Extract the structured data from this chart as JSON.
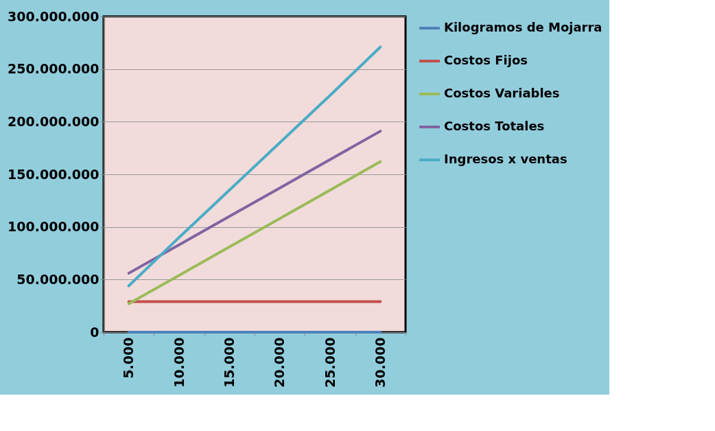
{
  "chart_data": {
    "type": "line",
    "categories": [
      "5.000",
      "10.000",
      "15.000",
      "20.000",
      "25.000",
      "30.000"
    ],
    "series": [
      {
        "name": "Kilogramos de Mojarra",
        "color": "#4f81bd",
        "values": [
          0,
          0,
          0,
          0,
          0,
          0
        ]
      },
      {
        "name": "Costos Fijos",
        "color": "#c0504d",
        "values": [
          29000000,
          29000000,
          29000000,
          29000000,
          29000000,
          29000000
        ]
      },
      {
        "name": "Costos Variables",
        "color": "#9bbb59",
        "values": [
          27000000,
          54000000,
          81000000,
          108000000,
          135000000,
          162000000
        ]
      },
      {
        "name": "Costos Totales",
        "color": "#8064a2",
        "values": [
          56000000,
          83000000,
          110000000,
          137000000,
          164000000,
          191000000
        ]
      },
      {
        "name": "Ingresos x ventas",
        "color": "#4bacc6",
        "values": [
          44000000,
          90000000,
          135000000,
          180000000,
          225000000,
          271000000
        ]
      }
    ],
    "ylim": [
      0,
      300000000
    ],
    "yticks": [
      {
        "value": 0,
        "label": "0"
      },
      {
        "value": 50000000,
        "label": "50.000.000"
      },
      {
        "value": 100000000,
        "label": "100.000.000"
      },
      {
        "value": 150000000,
        "label": "150.000.000"
      },
      {
        "value": 200000000,
        "label": "200.000.000"
      },
      {
        "value": 250000000,
        "label": "250.000.000"
      },
      {
        "value": 300000000,
        "label": "300.000.000"
      }
    ],
    "grid": "y",
    "legend": "right",
    "marker": "none",
    "line_style": "solid"
  }
}
